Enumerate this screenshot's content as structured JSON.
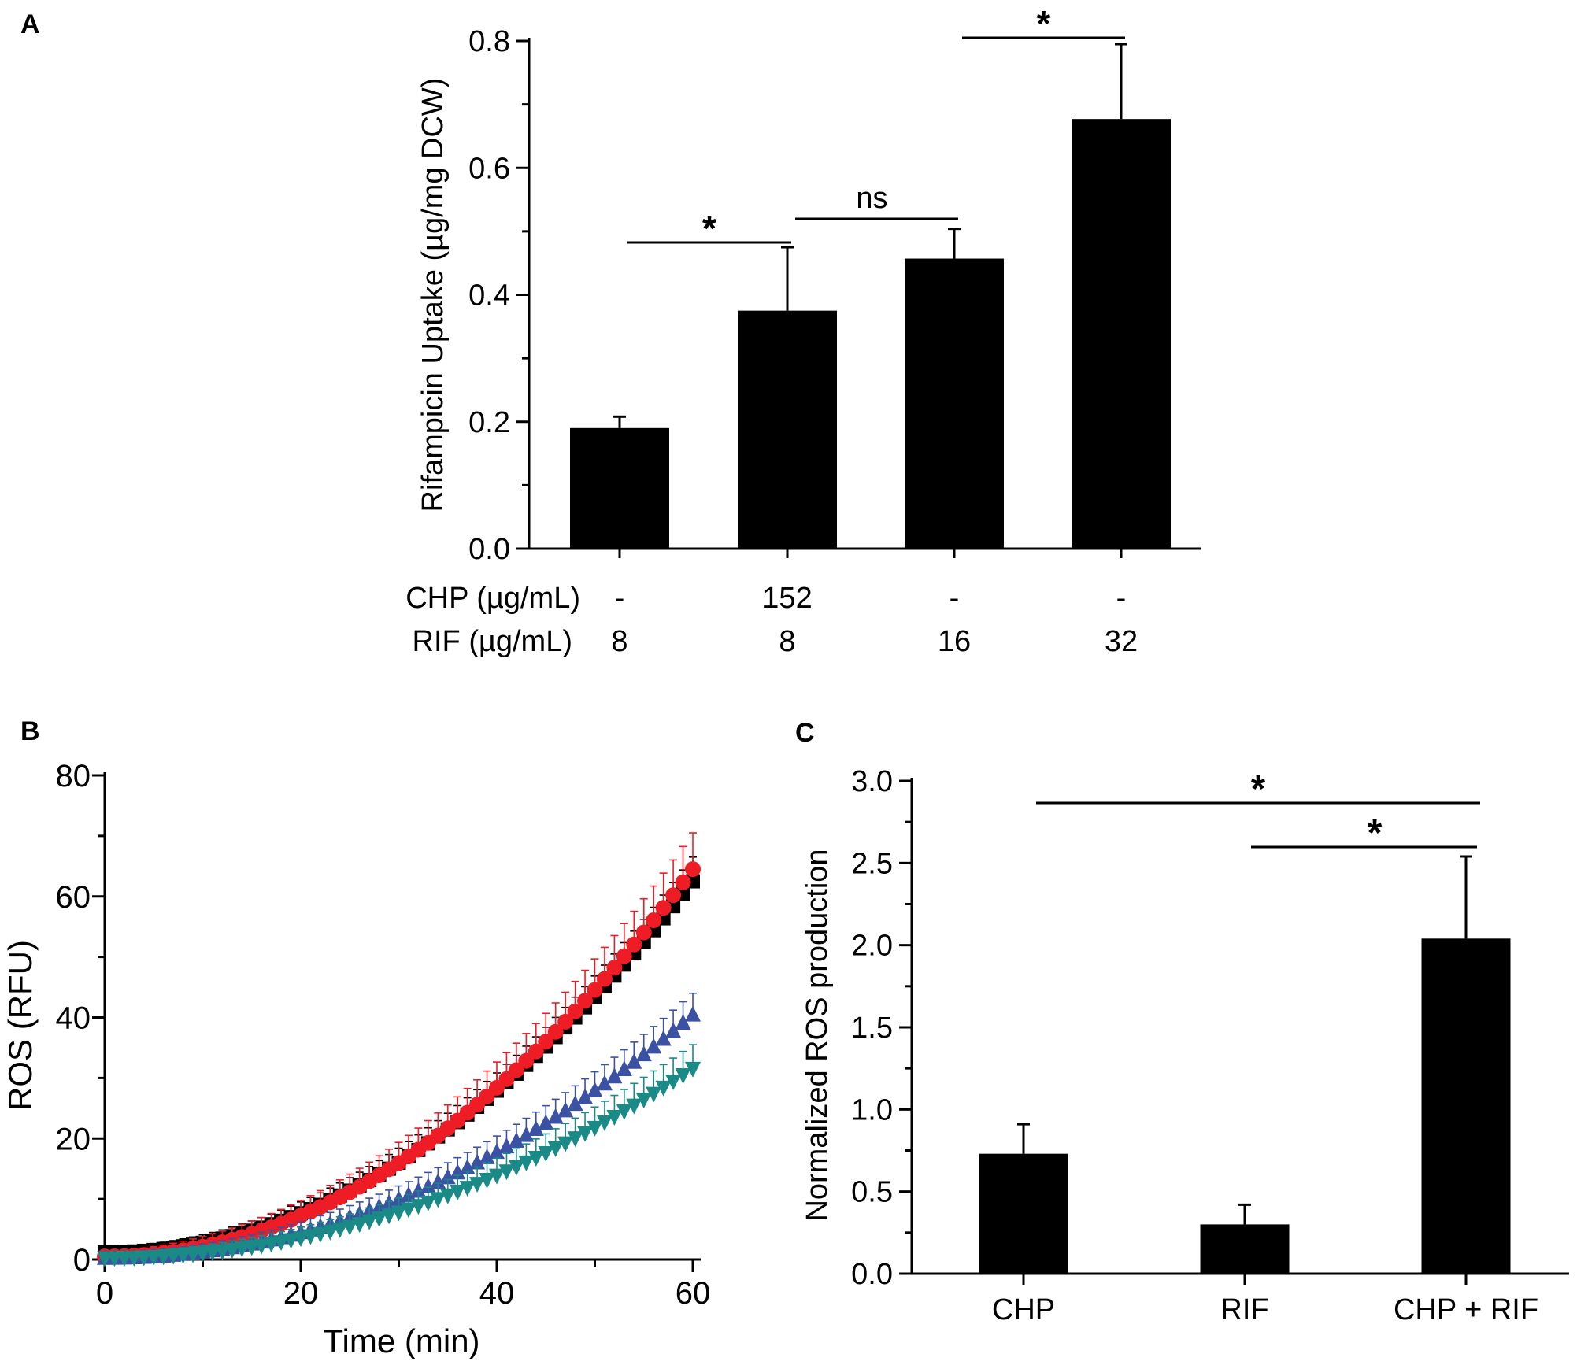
{
  "chart_data": [
    {
      "panel": "A",
      "type": "bar",
      "ylabel": "Rifampicin Uptake (µg/mg DCW)",
      "ylim": [
        0,
        0.8
      ],
      "yticks": [
        "0.0",
        "0.2",
        "0.4",
        "0.6",
        "0.8"
      ],
      "row_labels": [
        "CHP (µg/mL)",
        "RIF (µg/mL)"
      ],
      "categories": [
        {
          "chp": "-",
          "rif": "8"
        },
        {
          "chp": "152",
          "rif": "8"
        },
        {
          "chp": "-",
          "rif": "16"
        },
        {
          "chp": "-",
          "rif": "32"
        }
      ],
      "values": [
        0.19,
        0.375,
        0.457,
        0.677
      ],
      "errors": [
        0.018,
        0.1,
        0.047,
        0.118
      ],
      "significance": [
        {
          "from": 0,
          "to": 1,
          "label": "*"
        },
        {
          "from": 1,
          "to": 2,
          "label": "ns"
        },
        {
          "from": 2,
          "to": 3,
          "label": "*"
        }
      ]
    },
    {
      "panel": "B",
      "type": "scatter",
      "xlabel": "Time (min)",
      "ylabel": "ROS (RFU)",
      "xlim": [
        0,
        60
      ],
      "ylim": [
        0,
        80
      ],
      "xticks": [
        "0",
        "20",
        "40",
        "60"
      ],
      "yticks": [
        "0",
        "20",
        "40",
        "60",
        "80"
      ],
      "series": [
        {
          "name": "black squares",
          "color": "#000000",
          "marker": "square",
          "end_value": 62.5,
          "start_value": 1.2,
          "error_end": 4
        },
        {
          "name": "red circles",
          "color": "#ee1c24",
          "marker": "circle",
          "end_value": 64.5,
          "start_value": 0.5,
          "error_end": 6
        },
        {
          "name": "blue triangles",
          "color": "#3b51a3",
          "marker": "triangle-up",
          "end_value": 40.5,
          "start_value": 0.3,
          "error_end": 3.5
        },
        {
          "name": "teal triangles",
          "color": "#1a8a87",
          "marker": "triangle-down",
          "end_value": 31.5,
          "start_value": 0.2,
          "error_end": 4
        }
      ]
    },
    {
      "panel": "C",
      "type": "bar",
      "ylabel": "Normalized ROS production",
      "ylim": [
        0,
        3.0
      ],
      "yticks": [
        "0.0",
        "0.5",
        "1.0",
        "1.5",
        "2.0",
        "2.5",
        "3.0"
      ],
      "categories": [
        "CHP",
        "RIF",
        "CHP + RIF"
      ],
      "values": [
        0.73,
        0.3,
        2.04
      ],
      "errors": [
        0.18,
        0.12,
        0.5
      ],
      "significance": [
        {
          "from": 0,
          "to": 2,
          "label": "*"
        },
        {
          "from": 1,
          "to": 2,
          "label": "*"
        }
      ]
    }
  ],
  "panel_labels": [
    "A",
    "B",
    "C"
  ]
}
